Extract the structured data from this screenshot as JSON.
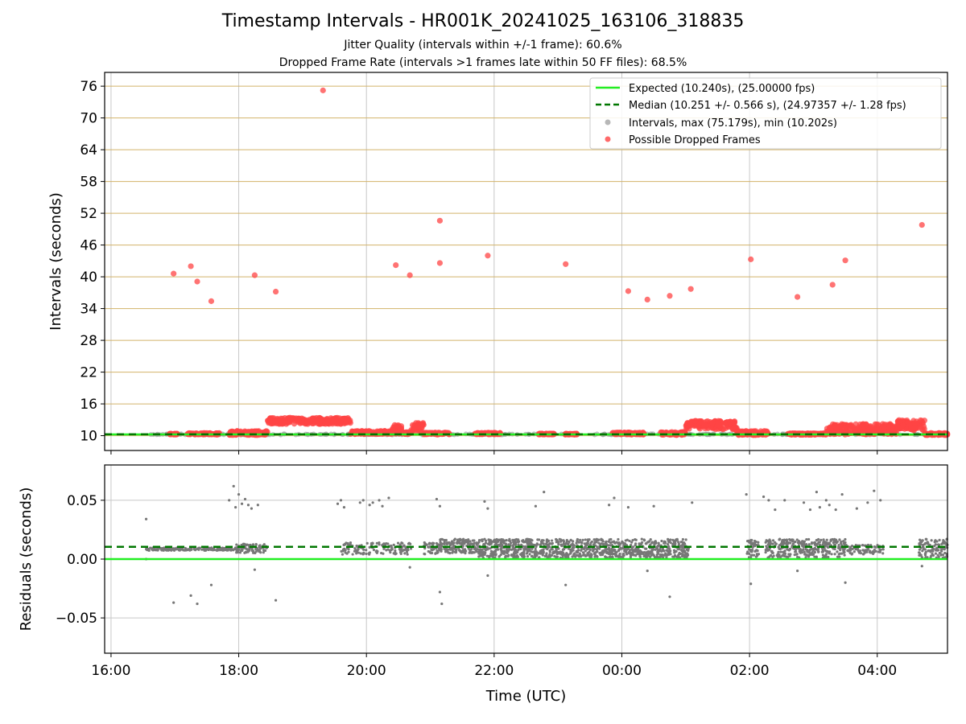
{
  "figure": {
    "title": "Timestamp Intervals - HR001K_20241025_163106_318835",
    "subtitle1": "Jitter Quality (intervals within +/-1 frame): 60.6%",
    "subtitle2": "Dropped Frame Rate (intervals >1 frames late within 50 FF files): 68.5%"
  },
  "chart_data": [
    {
      "id": "intervals",
      "type": "scatter",
      "xlabel": "",
      "ylabel": "Intervals (seconds)",
      "xlim_hours": [
        15.9,
        29.1
      ],
      "ylim": [
        7.2,
        78.6
      ],
      "yticks": [
        10,
        16,
        22,
        28,
        34,
        40,
        46,
        52,
        58,
        64,
        70,
        76
      ],
      "ygrid_color": "#d2b36a",
      "expected": {
        "value": 10.24,
        "color": "#22ee22",
        "label": "Expected (10.240s), (25.00000 fps)"
      },
      "median": {
        "value": 10.251,
        "color": "#007700",
        "label": "Median (10.251 +/- 0.566 s), (24.97357 +/- 1.28 fps)"
      },
      "intervals_series": {
        "label": "Intervals, max (75.179s), min (10.202s)",
        "color": "#999999"
      },
      "dropped_series": {
        "label": "Possible Dropped Frames",
        "color": "#ff4444",
        "outliers": [
          {
            "t": 16.98,
            "v": 40.6
          },
          {
            "t": 17.25,
            "v": 42.0
          },
          {
            "t": 17.35,
            "v": 39.1
          },
          {
            "t": 17.57,
            "v": 35.4
          },
          {
            "t": 18.25,
            "v": 40.3
          },
          {
            "t": 18.58,
            "v": 37.2
          },
          {
            "t": 19.32,
            "v": 75.2
          },
          {
            "t": 20.46,
            "v": 42.2
          },
          {
            "t": 20.68,
            "v": 40.3
          },
          {
            "t": 21.15,
            "v": 42.6
          },
          {
            "t": 21.15,
            "v": 50.6
          },
          {
            "t": 21.9,
            "v": 44.0
          },
          {
            "t": 23.12,
            "v": 42.4
          },
          {
            "t": 24.1,
            "v": 37.3
          },
          {
            "t": 24.4,
            "v": 35.7
          },
          {
            "t": 24.75,
            "v": 36.4
          },
          {
            "t": 25.08,
            "v": 37.7
          },
          {
            "t": 26.02,
            "v": 43.3
          },
          {
            "t": 26.75,
            "v": 36.2
          },
          {
            "t": 27.3,
            "v": 38.5
          },
          {
            "t": 27.5,
            "v": 43.1
          },
          {
            "t": 28.7,
            "v": 49.8
          }
        ],
        "bands": [
          {
            "t0": 16.9,
            "t1": 17.05,
            "base": 10.3,
            "amp": 0.1
          },
          {
            "t0": 17.2,
            "t1": 17.7,
            "base": 10.35,
            "amp": 0.15
          },
          {
            "t0": 17.85,
            "t1": 18.45,
            "base": 10.5,
            "amp": 0.4
          },
          {
            "t0": 18.45,
            "t1": 19.75,
            "base": 12.8,
            "amp": 0.6
          },
          {
            "t0": 19.75,
            "t1": 20.4,
            "base": 10.6,
            "amp": 0.3
          },
          {
            "t0": 20.4,
            "t1": 20.55,
            "base": 11.2,
            "amp": 0.9
          },
          {
            "t0": 20.55,
            "t1": 20.7,
            "base": 10.5,
            "amp": 0.2
          },
          {
            "t0": 20.7,
            "t1": 20.9,
            "base": 11.5,
            "amp": 1.0
          },
          {
            "t0": 20.9,
            "t1": 21.3,
            "base": 10.4,
            "amp": 0.2
          },
          {
            "t0": 21.7,
            "t1": 22.1,
            "base": 10.4,
            "amp": 0.15
          },
          {
            "t0": 22.7,
            "t1": 22.95,
            "base": 10.3,
            "amp": 0.1
          },
          {
            "t0": 23.1,
            "t1": 23.3,
            "base": 10.3,
            "amp": 0.1
          },
          {
            "t0": 23.85,
            "t1": 24.35,
            "base": 10.4,
            "amp": 0.2
          },
          {
            "t0": 24.6,
            "t1": 25.0,
            "base": 10.4,
            "amp": 0.3
          },
          {
            "t0": 25.0,
            "t1": 25.8,
            "base": 12.0,
            "amp": 0.8
          },
          {
            "t0": 25.8,
            "t1": 26.3,
            "base": 10.5,
            "amp": 0.4
          },
          {
            "t0": 26.6,
            "t1": 27.2,
            "base": 10.3,
            "amp": 0.15
          },
          {
            "t0": 27.2,
            "t1": 28.3,
            "base": 11.2,
            "amp": 1.0
          },
          {
            "t0": 28.3,
            "t1": 28.75,
            "base": 12.0,
            "amp": 1.0
          },
          {
            "t0": 28.75,
            "t1": 29.1,
            "base": 10.3,
            "amp": 0.2
          }
        ]
      }
    },
    {
      "id": "residuals",
      "type": "scatter",
      "xlabel": "Time (UTC)",
      "ylabel": "Residuals (seconds)",
      "xlim_hours": [
        15.9,
        29.1
      ],
      "ylim": [
        -0.08,
        0.08
      ],
      "xticks": [
        {
          "hour": 16,
          "label": "16:00"
        },
        {
          "hour": 18,
          "label": "18:00"
        },
        {
          "hour": 20,
          "label": "20:00"
        },
        {
          "hour": 22,
          "label": "22:00"
        },
        {
          "hour": 24,
          "label": "00:00"
        },
        {
          "hour": 26,
          "label": "02:00"
        },
        {
          "hour": 28,
          "label": "04:00"
        }
      ],
      "yticks": [
        {
          "value": 0.05,
          "label": "0.05"
        },
        {
          "value": 0.0,
          "label": "0.00"
        },
        {
          "value": -0.05,
          "label": "−0.05"
        }
      ],
      "expected_value": 0.0,
      "median_value": 0.0104,
      "point_color": "#777777",
      "clusters": [
        {
          "t0": 16.55,
          "t1": 17.95,
          "y": 0.0085,
          "spread": 0.0012,
          "n": 180
        },
        {
          "t0": 17.95,
          "t1": 18.45,
          "y": 0.009,
          "spread": 0.004,
          "n": 90
        },
        {
          "t0": 19.6,
          "t1": 20.7,
          "y": 0.009,
          "spread": 0.005,
          "n": 140
        },
        {
          "t0": 20.9,
          "t1": 21.15,
          "y": 0.009,
          "spread": 0.005,
          "n": 50
        },
        {
          "t0": 21.15,
          "t1": 21.75,
          "y": 0.011,
          "spread": 0.006,
          "n": 160
        },
        {
          "t0": 21.75,
          "t1": 24.0,
          "y": 0.009,
          "spread": 0.008,
          "n": 700
        },
        {
          "t0": 24.0,
          "t1": 25.05,
          "y": 0.009,
          "spread": 0.008,
          "n": 320
        },
        {
          "t0": 25.95,
          "t1": 26.15,
          "y": 0.009,
          "spread": 0.008,
          "n": 50
        },
        {
          "t0": 26.25,
          "t1": 27.5,
          "y": 0.009,
          "spread": 0.008,
          "n": 320
        },
        {
          "t0": 27.5,
          "t1": 28.1,
          "y": 0.008,
          "spread": 0.004,
          "n": 80
        },
        {
          "t0": 28.65,
          "t1": 29.1,
          "y": 0.009,
          "spread": 0.008,
          "n": 110
        }
      ],
      "outliers": [
        {
          "t": 16.55,
          "v": 0.034
        },
        {
          "t": 16.55,
          "v": 0.0
        },
        {
          "t": 16.98,
          "v": -0.037
        },
        {
          "t": 17.25,
          "v": -0.031
        },
        {
          "t": 17.35,
          "v": -0.038
        },
        {
          "t": 17.57,
          "v": -0.022
        },
        {
          "t": 17.85,
          "v": 0.05
        },
        {
          "t": 17.92,
          "v": 0.062
        },
        {
          "t": 17.95,
          "v": 0.044
        },
        {
          "t": 18.0,
          "v": 0.055
        },
        {
          "t": 18.05,
          "v": 0.047
        },
        {
          "t": 18.1,
          "v": 0.051
        },
        {
          "t": 18.15,
          "v": 0.046
        },
        {
          "t": 18.2,
          "v": 0.043
        },
        {
          "t": 18.25,
          "v": -0.009
        },
        {
          "t": 18.3,
          "v": 0.046
        },
        {
          "t": 18.58,
          "v": -0.035
        },
        {
          "t": 19.55,
          "v": 0.047
        },
        {
          "t": 19.6,
          "v": 0.05
        },
        {
          "t": 19.65,
          "v": 0.044
        },
        {
          "t": 19.9,
          "v": 0.048
        },
        {
          "t": 19.95,
          "v": 0.05
        },
        {
          "t": 20.05,
          "v": 0.046
        },
        {
          "t": 20.1,
          "v": 0.048
        },
        {
          "t": 20.2,
          "v": 0.05
        },
        {
          "t": 20.25,
          "v": 0.045
        },
        {
          "t": 20.35,
          "v": 0.052
        },
        {
          "t": 20.68,
          "v": -0.007
        },
        {
          "t": 21.1,
          "v": 0.051
        },
        {
          "t": 21.15,
          "v": 0.045
        },
        {
          "t": 21.15,
          "v": -0.028
        },
        {
          "t": 21.18,
          "v": -0.038
        },
        {
          "t": 21.85,
          "v": 0.049
        },
        {
          "t": 21.9,
          "v": 0.043
        },
        {
          "t": 21.9,
          "v": -0.014
        },
        {
          "t": 22.65,
          "v": 0.045
        },
        {
          "t": 22.78,
          "v": 0.057
        },
        {
          "t": 23.12,
          "v": -0.022
        },
        {
          "t": 23.8,
          "v": 0.046
        },
        {
          "t": 23.88,
          "v": 0.052
        },
        {
          "t": 24.1,
          "v": 0.044
        },
        {
          "t": 24.4,
          "v": -0.01
        },
        {
          "t": 24.5,
          "v": 0.045
        },
        {
          "t": 24.75,
          "v": -0.032
        },
        {
          "t": 25.1,
          "v": 0.048
        },
        {
          "t": 25.95,
          "v": 0.055
        },
        {
          "t": 26.02,
          "v": -0.021
        },
        {
          "t": 26.22,
          "v": 0.053
        },
        {
          "t": 26.3,
          "v": 0.05
        },
        {
          "t": 26.4,
          "v": 0.042
        },
        {
          "t": 26.55,
          "v": 0.05
        },
        {
          "t": 26.75,
          "v": -0.01
        },
        {
          "t": 26.85,
          "v": 0.048
        },
        {
          "t": 26.95,
          "v": 0.042
        },
        {
          "t": 27.05,
          "v": 0.057
        },
        {
          "t": 27.1,
          "v": 0.044
        },
        {
          "t": 27.2,
          "v": 0.05
        },
        {
          "t": 27.25,
          "v": 0.046
        },
        {
          "t": 27.35,
          "v": 0.042
        },
        {
          "t": 27.5,
          "v": -0.02
        },
        {
          "t": 27.45,
          "v": 0.055
        },
        {
          "t": 27.68,
          "v": 0.043
        },
        {
          "t": 27.85,
          "v": 0.048
        },
        {
          "t": 27.95,
          "v": 0.058
        },
        {
          "t": 28.05,
          "v": 0.05
        },
        {
          "t": 28.7,
          "v": -0.006
        }
      ]
    }
  ],
  "legend": {
    "position": "top-right",
    "entries": [
      {
        "key": "expected",
        "label": "Expected (10.240s), (25.00000 fps)"
      },
      {
        "key": "median",
        "label": "Median (10.251 +/- 0.566 s), (24.97357 +/- 1.28 fps)"
      },
      {
        "key": "intervals",
        "label": "Intervals, max (75.179s), min (10.202s)"
      },
      {
        "key": "dropped",
        "label": "Possible Dropped Frames"
      }
    ]
  }
}
